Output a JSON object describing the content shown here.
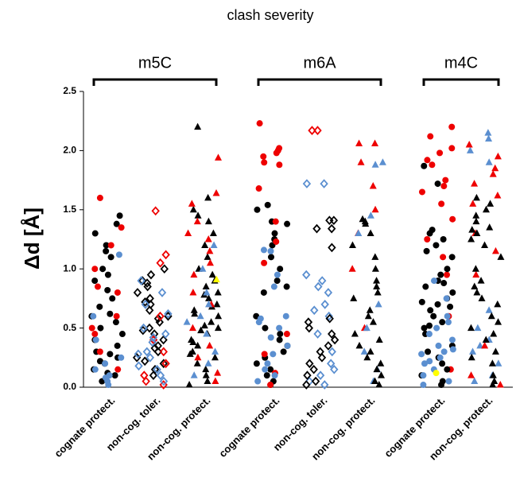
{
  "chart_data": {
    "type": "strip",
    "title": "clash severity",
    "ylabel": "Δd [Å]",
    "ylim": [
      0,
      2.5
    ],
    "yticks": [
      {
        "value": 0,
        "label": "0.0"
      },
      {
        "value": 0.5,
        "label": "0.5"
      },
      {
        "value": 1,
        "label": "1.0"
      },
      {
        "value": 1.5,
        "label": "1.5"
      },
      {
        "value": 2,
        "label": "2.0"
      },
      {
        "value": 2.5,
        "label": "2.5"
      }
    ],
    "groups": [
      {
        "label": "m5C",
        "categories": [
          {
            "label": "cognate protect.",
            "points": [
              {
                "marker": "circle",
                "color": "#000000",
                "values": [
                  0.1,
                  0.15,
                  0.2,
                  0.25,
                  0.3,
                  0.35,
                  0.4,
                  0.45,
                  0.5,
                  0.55,
                  0.6,
                  0.68,
                  0.75,
                  0.82,
                  0.9,
                  1.0,
                  1.1,
                  1.15,
                  1.2,
                  1.3,
                  1.38,
                  1.45,
                  0.05,
                  0.12,
                  0.28,
                  0.22,
                  0.62,
                  0.95
                ]
              },
              {
                "marker": "circle",
                "color": "#ee0000",
                "values": [
                  1.6,
                  1.35,
                  1.2,
                  1.0,
                  0.85,
                  0.8,
                  0.6,
                  0.5,
                  0.45,
                  0.3,
                  0.15
                ]
              },
              {
                "marker": "circle",
                "color": "#5b8fd0",
                "values": [
                  0.05,
                  0.1,
                  0.15,
                  0.2,
                  0.25,
                  0.4,
                  0.6,
                  1.12,
                  0.02,
                  0.08
                ]
              }
            ]
          },
          {
            "label": "non-cog. toler.",
            "points": [
              {
                "marker": "diamond",
                "color": "#000000",
                "values": [
                  0.1,
                  0.15,
                  0.2,
                  0.25,
                  0.3,
                  0.35,
                  0.4,
                  0.45,
                  0.5,
                  0.55,
                  0.6,
                  0.65,
                  0.7,
                  0.75,
                  0.8,
                  0.85,
                  0.9,
                  0.95,
                  1.0,
                  0.22,
                  0.33,
                  0.48,
                  0.58,
                  0.72,
                  0.88
                ]
              },
              {
                "marker": "diamond",
                "color": "#ee0000",
                "values": [
                  1.49,
                  1.12,
                  1.05,
                  0.6,
                  0.4,
                  0.3,
                  0.2,
                  0.1,
                  0.05,
                  0.02
                ]
              },
              {
                "marker": "diamond",
                "color": "#5b8fd0",
                "values": [
                  0.05,
                  0.1,
                  0.18,
                  0.25,
                  0.3,
                  0.38,
                  0.45,
                  0.5,
                  0.62,
                  0.7,
                  0.8,
                  0.9,
                  0.15,
                  0.28,
                  0.42
                ]
              }
            ]
          },
          {
            "label": "non-cog. protect.",
            "points": [
              {
                "marker": "triangle",
                "color": "#000000",
                "values": [
                  2.2,
                  1.6,
                  1.5,
                  1.45,
                  1.4,
                  1.3,
                  1.2,
                  1.1,
                  1.0,
                  0.95,
                  0.9,
                  0.85,
                  0.8,
                  0.75,
                  0.7,
                  0.65,
                  0.6,
                  0.55,
                  0.5,
                  0.45,
                  0.4,
                  0.35,
                  0.3,
                  0.25,
                  0.2,
                  0.15,
                  0.1,
                  0.05,
                  0.02,
                  0.62,
                  0.48,
                  0.38,
                  0.78,
                  0.52,
                  0.68,
                  0.28
                ]
              },
              {
                "marker": "triangle",
                "color": "#ee0000",
                "values": [
                  1.94,
                  1.64,
                  1.55,
                  1.4,
                  1.3,
                  1.25,
                  1.15,
                  1.05,
                  0.95,
                  0.8,
                  0.7,
                  0.5,
                  0.35,
                  0.25,
                  0.12,
                  0.05
                ]
              },
              {
                "marker": "triangle",
                "color": "#5b8fd0",
                "values": [
                  1.2,
                  1.0,
                  0.8,
                  0.6,
                  0.45,
                  0.3,
                  0.2,
                  0.1,
                  0.55,
                  0.7
                ]
              },
              {
                "marker": "triangle",
                "color": "#ffff00",
                "values": [
                  0.91
                ]
              }
            ]
          }
        ]
      },
      {
        "label": "m6A",
        "categories": [
          {
            "label": "cognate protect.",
            "points": [
              {
                "marker": "circle",
                "color": "#000000",
                "values": [
                  1.54,
                  1.5,
                  1.4,
                  1.38,
                  1.3,
                  1.25,
                  1.2,
                  1.1,
                  1.0,
                  0.9,
                  0.85,
                  0.8,
                  0.6,
                  0.5,
                  0.45,
                  0.4,
                  0.35,
                  0.3,
                  0.25,
                  0.2,
                  0.15,
                  0.1,
                  0.05,
                  0.02
                ]
              },
              {
                "marker": "circle",
                "color": "#ee0000",
                "values": [
                  2.23,
                  2.02,
                  2.0,
                  1.98,
                  1.95,
                  1.9,
                  1.88,
                  1.68,
                  1.4,
                  1.23,
                  1.05,
                  0.45,
                  0.28,
                  0.12,
                  0.02
                ]
              },
              {
                "marker": "circle",
                "color": "#5b8fd0",
                "values": [
                  1.16,
                  1.15,
                  0.95,
                  0.85,
                  0.6,
                  0.58,
                  0.55,
                  0.5,
                  0.42,
                  0.35,
                  0.28,
                  0.2,
                  0.15,
                  0.1,
                  0.05
                ]
              }
            ]
          },
          {
            "label": "non-cog. toler.",
            "points": [
              {
                "marker": "diamond",
                "color": "#ee0000",
                "values": [
                  2.17,
                  2.17
                ]
              },
              {
                "marker": "diamond",
                "color": "#5b8fd0",
                "values": [
                  1.72,
                  1.72,
                  0.95,
                  0.9,
                  0.85,
                  0.8,
                  0.7,
                  0.65,
                  0.6,
                  0.45,
                  0.3,
                  0.2,
                  0.15,
                  0.1,
                  0.05,
                  0.02
                ]
              },
              {
                "marker": "diamond",
                "color": "#000000",
                "values": [
                  1.41,
                  1.41,
                  1.34,
                  1.34,
                  1.18,
                  0.58,
                  0.55,
                  0.5,
                  0.45,
                  0.4,
                  0.35,
                  0.3,
                  0.25,
                  0.2,
                  0.15,
                  0.1,
                  0.05,
                  0.02
                ]
              }
            ]
          },
          {
            "label": "non-cog. protect.",
            "points": [
              {
                "marker": "triangle",
                "color": "#ee0000",
                "values": [
                  2.06,
                  2.06,
                  1.9,
                  1.7,
                  1.5,
                  1.3,
                  1.0,
                  0.5
                ]
              },
              {
                "marker": "triangle",
                "color": "#5b8fd0",
                "values": [
                  1.9,
                  1.88,
                  1.45,
                  1.3,
                  0.7,
                  0.5,
                  0.3,
                  0.15,
                  0.05
                ]
              },
              {
                "marker": "triangle",
                "color": "#000000",
                "values": [
                  1.42,
                  1.4,
                  1.3,
                  1.2,
                  1.1,
                  1.0,
                  0.9,
                  0.85,
                  0.8,
                  0.75,
                  0.6,
                  0.55,
                  0.45,
                  0.4,
                  0.3,
                  0.25,
                  0.2,
                  0.15,
                  0.1,
                  0.05,
                  0.02,
                  1.38,
                  0.65,
                  0.35
                ]
              }
            ]
          }
        ]
      },
      {
        "label": "m4C",
        "categories": [
          {
            "label": "cognate protect.",
            "points": [
              {
                "marker": "circle",
                "color": "#ee0000",
                "values": [
                  2.2,
                  2.12,
                  2.02,
                  1.98,
                  1.92,
                  1.88,
                  1.75,
                  1.7,
                  1.65,
                  1.55,
                  1.42,
                  1.25,
                  1.1,
                  0.95,
                  0.6,
                  0.15
                ]
              },
              {
                "marker": "circle",
                "color": "#000000",
                "values": [
                  1.87,
                  1.72,
                  1.33,
                  1.3,
                  1.25,
                  1.2,
                  1.1,
                  1.0,
                  0.95,
                  0.9,
                  0.85,
                  0.8,
                  0.75,
                  0.7,
                  0.65,
                  0.6,
                  0.55,
                  0.5,
                  0.45,
                  0.35,
                  0.3,
                  0.25,
                  0.2,
                  0.15,
                  0.1,
                  0.05,
                  0.02,
                  1.15,
                  0.88,
                  0.72,
                  0.68,
                  0.52
                ]
              },
              {
                "marker": "circle",
                "color": "#5b8fd0",
                "values": [
                  0.9,
                  0.75,
                  0.6,
                  0.55,
                  0.5,
                  0.45,
                  0.4,
                  0.35,
                  0.32,
                  0.3,
                  0.28,
                  0.25,
                  0.22,
                  0.2,
                  0.15,
                  0.1,
                  0.05,
                  0.02
                ]
              },
              {
                "marker": "circle",
                "color": "#ffff00",
                "values": [
                  0.12
                ]
              }
            ]
          },
          {
            "label": "non-cog. protect.",
            "points": [
              {
                "marker": "triangle",
                "color": "#5b8fd0",
                "values": [
                  2.15,
                  2.1,
                  2.0,
                  1.9,
                  0.65,
                  0.5,
                  0.4,
                  0.35,
                  0.3,
                  0.2,
                  0.1,
                  0.05
                ]
              },
              {
                "marker": "triangle",
                "color": "#ee0000",
                "values": [
                  2.05,
                  1.95,
                  1.85,
                  1.8,
                  1.72,
                  1.62,
                  1.55,
                  1.3,
                  1.15,
                  0.95,
                  0.35,
                  0.1,
                  0.02
                ]
              },
              {
                "marker": "triangle",
                "color": "#000000",
                "values": [
                  1.6,
                  1.55,
                  1.5,
                  1.45,
                  1.4,
                  1.35,
                  1.3,
                  1.25,
                  1.2,
                  1.1,
                  1.0,
                  0.9,
                  0.85,
                  0.8,
                  0.7,
                  0.6,
                  0.55,
                  0.5,
                  0.45,
                  0.4,
                  0.3,
                  0.25,
                  0.2,
                  0.1,
                  0.05,
                  0.02,
                  1.33,
                  0.75
                ]
              }
            ]
          }
        ]
      }
    ]
  }
}
